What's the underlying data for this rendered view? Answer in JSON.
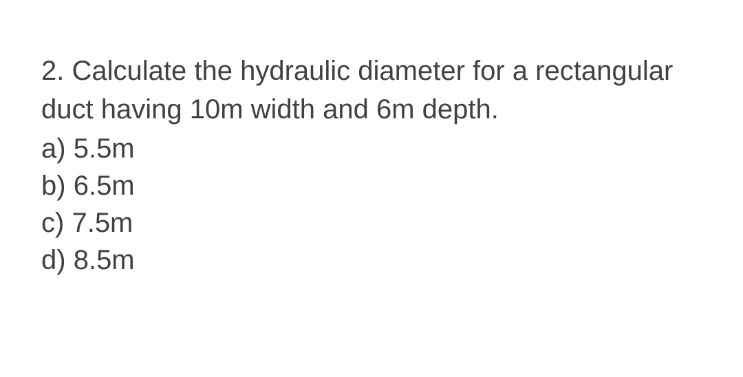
{
  "question": {
    "number": "2.",
    "text": "Calculate the hydraulic diameter for a rectangular duct having 10m width and 6m depth.",
    "options": [
      {
        "label": "a)",
        "value": "5.5m"
      },
      {
        "label": "b)",
        "value": "6.5m"
      },
      {
        "label": "c)",
        "value": "7.5m"
      },
      {
        "label": "d)",
        "value": "8.5m"
      }
    ]
  },
  "style": {
    "text_color": "#414141",
    "background_color": "#ffffff",
    "font_size": 40,
    "line_height": 1.4
  }
}
